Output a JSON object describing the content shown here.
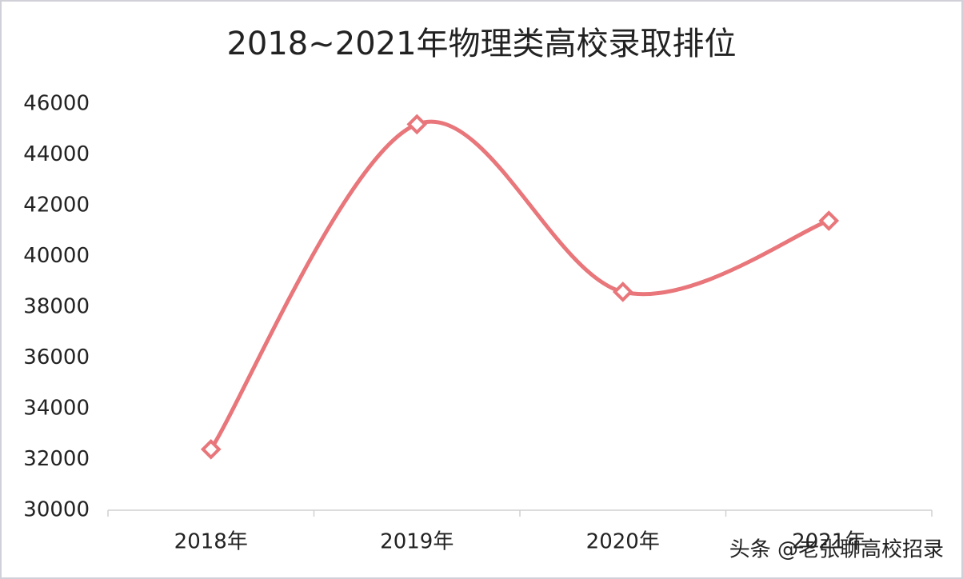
{
  "chart_data": {
    "type": "line",
    "title": "2018~2021年物理类高校录取排位",
    "categories": [
      "2018年",
      "2019年",
      "2020年",
      "2021年"
    ],
    "series": [
      {
        "name": "录取排位",
        "color": "#e8767a",
        "values": [
          32400,
          45200,
          38600,
          41400
        ]
      }
    ],
    "ylim": [
      30000,
      46000
    ],
    "yticks": [
      30000,
      32000,
      34000,
      36000,
      38000,
      40000,
      42000,
      44000,
      46000
    ],
    "smooth": true,
    "grid": false,
    "legend": false
  },
  "watermark": "头条 @老张聊高校招录"
}
